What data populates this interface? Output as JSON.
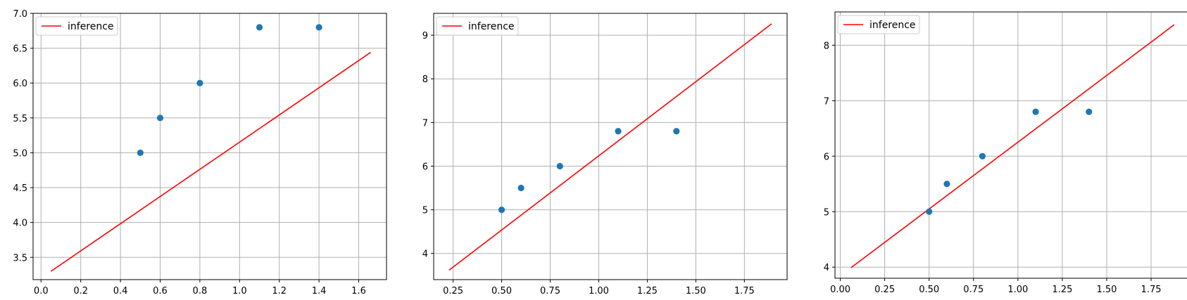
{
  "colors": {
    "background": "#ffffff",
    "grid": "#b0b0b0",
    "axes": "#000000",
    "scatter": "#1f77b4",
    "line": "#ff0000",
    "legend_border": "#cccccc"
  },
  "chart_data": [
    {
      "type": "scatter",
      "title": "",
      "xlabel": "",
      "ylabel": "",
      "grid": true,
      "legend_placement": "top-left",
      "legend": [
        "inference"
      ],
      "xlim": [
        -0.04,
        1.74
      ],
      "ylim": [
        3.18,
        7.0
      ],
      "xticks": [
        0.0,
        0.2,
        0.4,
        0.6,
        0.8,
        1.0,
        1.2,
        1.4,
        1.6
      ],
      "xtick_labels": [
        "0.0",
        "0.2",
        "0.4",
        "0.6",
        "0.8",
        "1.0",
        "1.2",
        "1.4",
        "1.6"
      ],
      "yticks": [
        3.5,
        4.0,
        4.5,
        5.0,
        5.5,
        6.0,
        6.5,
        7.0
      ],
      "ytick_labels": [
        "3.5",
        "4.0",
        "4.5",
        "5.0",
        "5.5",
        "6.0",
        "6.5",
        "7.0"
      ],
      "points": {
        "x": [
          0.5,
          0.6,
          0.8,
          1.1,
          1.4
        ],
        "y": [
          5.0,
          5.5,
          6.0,
          6.8,
          6.8
        ]
      },
      "line": {
        "name": "inference",
        "x": [
          0.05,
          1.66
        ],
        "y": [
          3.3,
          6.44
        ]
      }
    },
    {
      "type": "scatter",
      "title": "",
      "xlabel": "",
      "ylabel": "",
      "grid": true,
      "legend_placement": "top-left",
      "legend": [
        "inference"
      ],
      "xlim": [
        0.15,
        1.97
      ],
      "ylim": [
        3.4,
        9.5
      ],
      "xticks": [
        0.25,
        0.5,
        0.75,
        1.0,
        1.25,
        1.5,
        1.75
      ],
      "xtick_labels": [
        "0.25",
        "0.50",
        "0.75",
        "1.00",
        "1.25",
        "1.50",
        "1.75"
      ],
      "yticks": [
        4,
        5,
        6,
        7,
        8,
        9
      ],
      "ytick_labels": [
        "4",
        "5",
        "6",
        "7",
        "8",
        "9"
      ],
      "points": {
        "x": [
          0.5,
          0.6,
          0.8,
          1.1,
          1.4
        ],
        "y": [
          5.0,
          5.5,
          6.0,
          6.8,
          6.8
        ]
      },
      "line": {
        "name": "inference",
        "x": [
          0.23,
          1.89
        ],
        "y": [
          3.62,
          9.26
        ]
      }
    },
    {
      "type": "scatter",
      "title": "",
      "xlabel": "",
      "ylabel": "",
      "grid": true,
      "legend_placement": "top-left",
      "legend": [
        "inference"
      ],
      "xlim": [
        -0.03,
        1.96
      ],
      "ylim": [
        3.8,
        8.6
      ],
      "xticks": [
        0.0,
        0.25,
        0.5,
        0.75,
        1.0,
        1.25,
        1.5,
        1.75
      ],
      "xtick_labels": [
        "0.00",
        "0.25",
        "0.50",
        "0.75",
        "1.00",
        "1.25",
        "1.50",
        "1.75"
      ],
      "yticks": [
        4,
        5,
        6,
        7,
        8
      ],
      "ytick_labels": [
        "4",
        "5",
        "6",
        "7",
        "8"
      ],
      "points": {
        "x": [
          0.5,
          0.6,
          0.8,
          1.1,
          1.4
        ],
        "y": [
          5.0,
          5.5,
          6.0,
          6.8,
          6.8
        ]
      },
      "line": {
        "name": "inference",
        "x": [
          0.06,
          1.88
        ],
        "y": [
          3.99,
          8.37
        ]
      }
    }
  ]
}
